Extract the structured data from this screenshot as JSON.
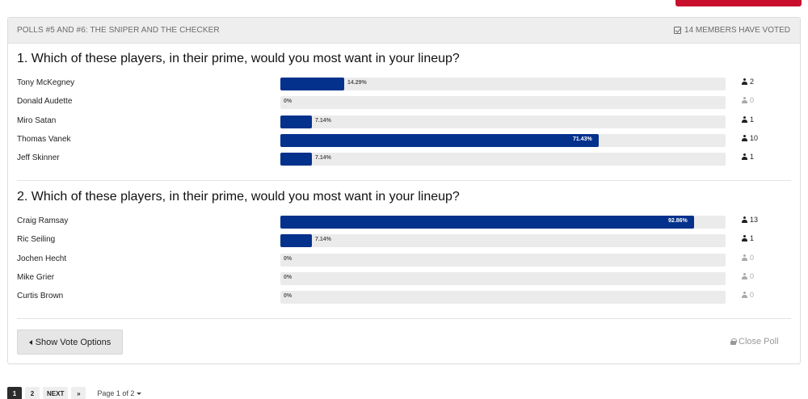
{
  "poll": {
    "title": "POLLS #5 AND #6: THE SNIPER AND THE CHECKER",
    "voted": "14 MEMBERS HAVE VOTED",
    "questions": [
      {
        "text": "1. Which of these players, in their prime, would you most want in your lineup?",
        "choices": [
          {
            "label": "Tony McKegney",
            "pct": "14.29%",
            "value": 14.29,
            "votes": "2"
          },
          {
            "label": "Donald Audette",
            "pct": "0%",
            "value": 0,
            "votes": "0"
          },
          {
            "label": "Miro Satan",
            "pct": "7.14%",
            "value": 7.14,
            "votes": "1"
          },
          {
            "label": "Thomas Vanek",
            "pct": "71.43%",
            "value": 71.43,
            "votes": "10"
          },
          {
            "label": "Jeff Skinner",
            "pct": "7.14%",
            "value": 7.14,
            "votes": "1"
          }
        ]
      },
      {
        "text": "2. Which of these players, in their prime, would you most want in your lineup?",
        "choices": [
          {
            "label": "Craig Ramsay",
            "pct": "92.86%",
            "value": 92.86,
            "votes": "13"
          },
          {
            "label": "Ric Seiling",
            "pct": "7.14%",
            "value": 7.14,
            "votes": "1"
          },
          {
            "label": "Jochen Hecht",
            "pct": "0%",
            "value": 0,
            "votes": "0"
          },
          {
            "label": "Mike Grier",
            "pct": "0%",
            "value": 0,
            "votes": "0"
          },
          {
            "label": "Curtis Brown",
            "pct": "0%",
            "value": 0,
            "votes": "0"
          }
        ]
      }
    ],
    "show_vote_label": "Show Vote Options",
    "close_poll_label": "Close Poll"
  },
  "pagination": {
    "pages": [
      "1",
      "2"
    ],
    "next_label": "NEXT",
    "last_label": "»",
    "page_info": "Page 1 of 2"
  },
  "colors": {
    "bar_fill": "#03318c",
    "bar_track": "#ebebeb",
    "accent_red": "#c8102e"
  }
}
